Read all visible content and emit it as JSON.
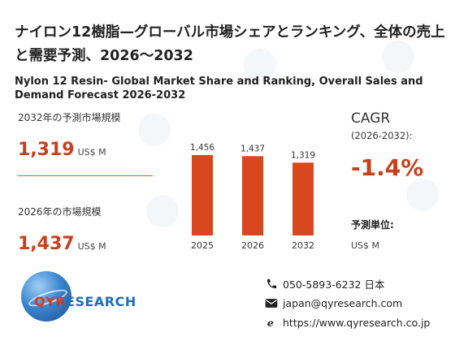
{
  "title_jp": "ナイロン12樹脂—グローバル市場シェアとランキング、全体の売上と需要予測、2026～2032",
  "title_en": "Nylon 12 Resin- Global Market Share and Ranking, Overall Sales and Demand Forecast 2026-2032",
  "stats": {
    "forecast_label": "2032年の予測市場規模",
    "forecast_value": "1,319",
    "forecast_unit": "US$ M",
    "current_label": "2026年の市場規模",
    "current_value": "1,437",
    "current_unit": "US$ M"
  },
  "cagr": {
    "label": "CAGR",
    "period": "(2026-2032):",
    "value": "-1.4%"
  },
  "unit_info": {
    "label": "予測単位:",
    "value": "US$ M"
  },
  "brand": {
    "name_part1": "QYR",
    "name_part2": "ESEARCH"
  },
  "contact": {
    "phone": "050-5893-6232 日本",
    "email": "japan@qyresearch.com",
    "web": "https://www.qyresearch.co.jp"
  },
  "colors": {
    "bar": "#d9471f",
    "accent": "#c8401e",
    "logo_red": "#d23a1f",
    "logo_blue": "#1b6fc0"
  },
  "icons": [
    "phone-icon",
    "email-icon",
    "web-icon",
    "globe-logo"
  ],
  "chart_data": {
    "type": "bar",
    "categories": [
      "2025",
      "2026",
      "2032"
    ],
    "values": [
      1456,
      1437,
      1319
    ],
    "value_labels": [
      "1,456",
      "1,437",
      "1,319"
    ],
    "title": "",
    "xlabel": "",
    "ylabel": "",
    "ylim": [
      0,
      1500
    ],
    "grid": false,
    "legend": "none"
  }
}
